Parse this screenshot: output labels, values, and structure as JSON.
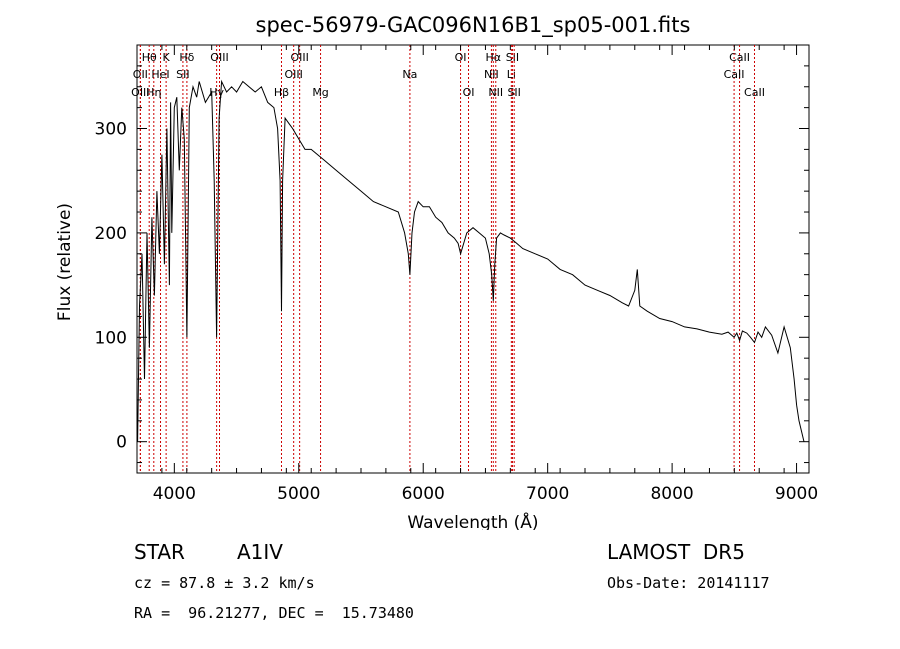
{
  "chart_data": {
    "type": "line",
    "title": "spec-56979-GAC096N16B1_sp05-001.fits",
    "xlabel": "Wavelength (Å)",
    "ylabel": "Flux (relative)",
    "xlim": [
      3700,
      9100
    ],
    "ylim": [
      -30,
      380
    ],
    "xticks": [
      4000,
      5000,
      6000,
      7000,
      8000,
      9000
    ],
    "yticks": [
      0,
      100,
      200,
      300
    ],
    "line_color": "#000000",
    "marker_color": "#cc0000",
    "series": [
      {
        "x": [
          3705,
          3720,
          3740,
          3760,
          3780,
          3800,
          3820,
          3840,
          3860,
          3880,
          3900,
          3920,
          3940,
          3960,
          3970,
          3980,
          4000,
          4020,
          4040,
          4060,
          4080,
          4101,
          4120,
          4150,
          4180,
          4200,
          4250,
          4300,
          4320,
          4340,
          4360,
          4380,
          4420,
          4460,
          4500,
          4550,
          4600,
          4650,
          4700,
          4750,
          4800,
          4830,
          4850,
          4861,
          4870,
          4890,
          4920,
          4950,
          5000,
          5050,
          5100,
          5200,
          5300,
          5400,
          5500,
          5600,
          5700,
          5800,
          5850,
          5880,
          5893,
          5910,
          5930,
          5960,
          6000,
          6050,
          6100,
          6150,
          6200,
          6250,
          6280,
          6300,
          6350,
          6400,
          6450,
          6500,
          6530,
          6550,
          6563,
          6575,
          6590,
          6620,
          6650,
          6700,
          6750,
          6800,
          6900,
          7000,
          7100,
          7200,
          7300,
          7400,
          7500,
          7600,
          7650,
          7700,
          7720,
          7740,
          7800,
          7900,
          8000,
          8100,
          8200,
          8300,
          8400,
          8450,
          8498,
          8520,
          8542,
          8565,
          8600,
          8630,
          8662,
          8690,
          8720,
          8750,
          8800,
          8850,
          8900,
          8950,
          8980,
          9000,
          9020,
          9040,
          9060
        ],
        "y": [
          0,
          130,
          180,
          60,
          200,
          90,
          215,
          140,
          240,
          180,
          275,
          170,
          300,
          150,
          325,
          200,
          320,
          330,
          260,
          320,
          290,
          100,
          320,
          340,
          330,
          345,
          325,
          335,
          250,
          100,
          310,
          345,
          335,
          340,
          335,
          345,
          340,
          335,
          340,
          325,
          320,
          300,
          250,
          125,
          250,
          310,
          305,
          300,
          290,
          280,
          280,
          270,
          260,
          250,
          240,
          230,
          225,
          220,
          200,
          180,
          160,
          200,
          220,
          230,
          225,
          225,
          215,
          210,
          200,
          195,
          190,
          180,
          200,
          205,
          200,
          195,
          180,
          160,
          135,
          170,
          195,
          200,
          198,
          195,
          190,
          185,
          180,
          175,
          165,
          160,
          150,
          145,
          140,
          133,
          130,
          145,
          165,
          130,
          125,
          118,
          115,
          110,
          108,
          105,
          103,
          105,
          100,
          104,
          97,
          106,
          104,
          100,
          95,
          105,
          100,
          110,
          102,
          85,
          110,
          90,
          60,
          35,
          20,
          10,
          0
        ]
      }
    ],
    "line_markers": [
      {
        "label": "Hθ",
        "x": 3798,
        "row": 1
      },
      {
        "label": "OII",
        "x": 3727,
        "row": 2
      },
      {
        "label": "OIII",
        "x": 3727,
        "row": 3
      },
      {
        "label": "K",
        "x": 3934,
        "row": 1
      },
      {
        "label": "HeI",
        "x": 3889,
        "row": 2
      },
      {
        "label": "Hη",
        "x": 3835,
        "row": 3
      },
      {
        "label": "Hδ",
        "x": 4101,
        "row": 1
      },
      {
        "label": "SII",
        "x": 4069,
        "row": 2
      },
      {
        "label": "Hγ",
        "x": 4340,
        "row": 3
      },
      {
        "label": "OIII",
        "x": 4363,
        "row": 1
      },
      {
        "label": "Hβ",
        "x": 4861,
        "row": 3
      },
      {
        "label": "OIII",
        "x": 5007,
        "row": 1
      },
      {
        "label": "OIII",
        "x": 4959,
        "row": 2
      },
      {
        "label": "Mg",
        "x": 5175,
        "row": 3
      },
      {
        "label": "Na",
        "x": 5893,
        "row": 2
      },
      {
        "label": "OI",
        "x": 6300,
        "row": 1
      },
      {
        "label": "OI",
        "x": 6364,
        "row": 3
      },
      {
        "label": "Hα",
        "x": 6563,
        "row": 1
      },
      {
        "label": "NII",
        "x": 6548,
        "row": 2
      },
      {
        "label": "NII",
        "x": 6583,
        "row": 3
      },
      {
        "label": "SII",
        "x": 6717,
        "row": 1
      },
      {
        "label": "Li",
        "x": 6708,
        "row": 2
      },
      {
        "label": "SII",
        "x": 6731,
        "row": 3
      },
      {
        "label": "CaII",
        "x": 8542,
        "row": 1
      },
      {
        "label": "CaII",
        "x": 8498,
        "row": 2
      },
      {
        "label": "CaII",
        "x": 8662,
        "row": 3
      }
    ]
  },
  "info": {
    "object_type": "STAR",
    "subclass": "A1IV",
    "survey": "LAMOST  DR5",
    "cz": "cz = 87.8 ± 3.2 km/s",
    "obs_date": "Obs-Date: 20141117",
    "radec": "RA =  96.21277, DEC =  15.73480"
  }
}
